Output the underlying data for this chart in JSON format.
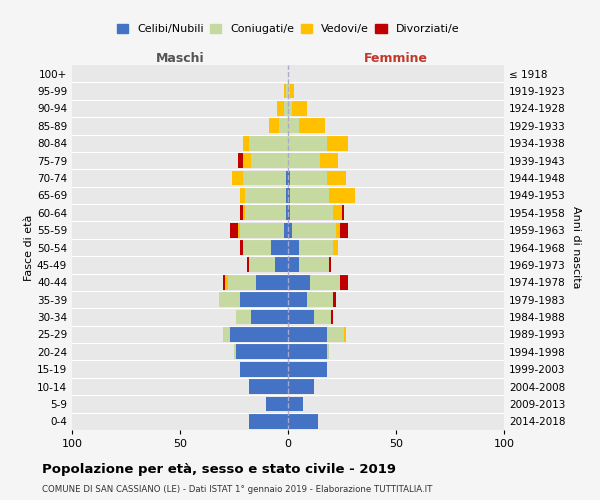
{
  "age_groups": [
    "0-4",
    "5-9",
    "10-14",
    "15-19",
    "20-24",
    "25-29",
    "30-34",
    "35-39",
    "40-44",
    "45-49",
    "50-54",
    "55-59",
    "60-64",
    "65-69",
    "70-74",
    "75-79",
    "80-84",
    "85-89",
    "90-94",
    "95-99",
    "100+"
  ],
  "birth_years": [
    "2014-2018",
    "2009-2013",
    "2004-2008",
    "1999-2003",
    "1994-1998",
    "1989-1993",
    "1984-1988",
    "1979-1983",
    "1974-1978",
    "1969-1973",
    "1964-1968",
    "1959-1963",
    "1954-1958",
    "1949-1953",
    "1944-1948",
    "1939-1943",
    "1934-1938",
    "1929-1933",
    "1924-1928",
    "1919-1923",
    "≤ 1918"
  ],
  "males": {
    "celibi": [
      18,
      10,
      18,
      22,
      24,
      27,
      17,
      22,
      15,
      6,
      8,
      2,
      1,
      1,
      1,
      0,
      0,
      0,
      0,
      0,
      0
    ],
    "coniugati": [
      0,
      0,
      0,
      0,
      1,
      3,
      7,
      10,
      13,
      12,
      13,
      20,
      19,
      19,
      20,
      17,
      18,
      4,
      2,
      1,
      0
    ],
    "vedovi": [
      0,
      0,
      0,
      0,
      0,
      0,
      0,
      0,
      1,
      0,
      0,
      1,
      1,
      2,
      5,
      4,
      3,
      5,
      3,
      1,
      0
    ],
    "divorziati": [
      0,
      0,
      0,
      0,
      0,
      0,
      0,
      0,
      1,
      1,
      1,
      4,
      1,
      0,
      0,
      2,
      0,
      0,
      0,
      0,
      0
    ]
  },
  "females": {
    "nubili": [
      14,
      7,
      12,
      18,
      18,
      18,
      12,
      9,
      10,
      5,
      5,
      2,
      1,
      1,
      1,
      0,
      0,
      0,
      0,
      0,
      0
    ],
    "coniugate": [
      0,
      0,
      0,
      0,
      1,
      8,
      8,
      12,
      14,
      14,
      16,
      20,
      20,
      18,
      17,
      15,
      18,
      5,
      2,
      1,
      0
    ],
    "vedove": [
      0,
      0,
      0,
      0,
      0,
      1,
      0,
      0,
      0,
      0,
      2,
      2,
      4,
      12,
      9,
      8,
      10,
      12,
      7,
      2,
      0
    ],
    "divorziate": [
      0,
      0,
      0,
      0,
      0,
      0,
      1,
      1,
      4,
      1,
      0,
      4,
      1,
      0,
      0,
      0,
      0,
      0,
      0,
      0,
      0
    ]
  },
  "colors": {
    "celibi": "#4472c4",
    "coniugati": "#c5d9a0",
    "vedovi": "#ffc000",
    "divorziati": "#c00000"
  },
  "title": "Popolazione per età, sesso e stato civile - 2019",
  "subtitle": "COMUNE DI SAN CASSIANO (LE) - Dati ISTAT 1° gennaio 2019 - Elaborazione TUTTITALIA.IT",
  "xlabel_left": "Maschi",
  "xlabel_right": "Femmine",
  "ylabel_left": "Fasce di età",
  "ylabel_right": "Anni di nascita",
  "xlim": 100,
  "legend_labels": [
    "Celibi/Nubili",
    "Coniugati/e",
    "Vedovi/e",
    "Divorziati/e"
  ],
  "bar_height": 0.85
}
